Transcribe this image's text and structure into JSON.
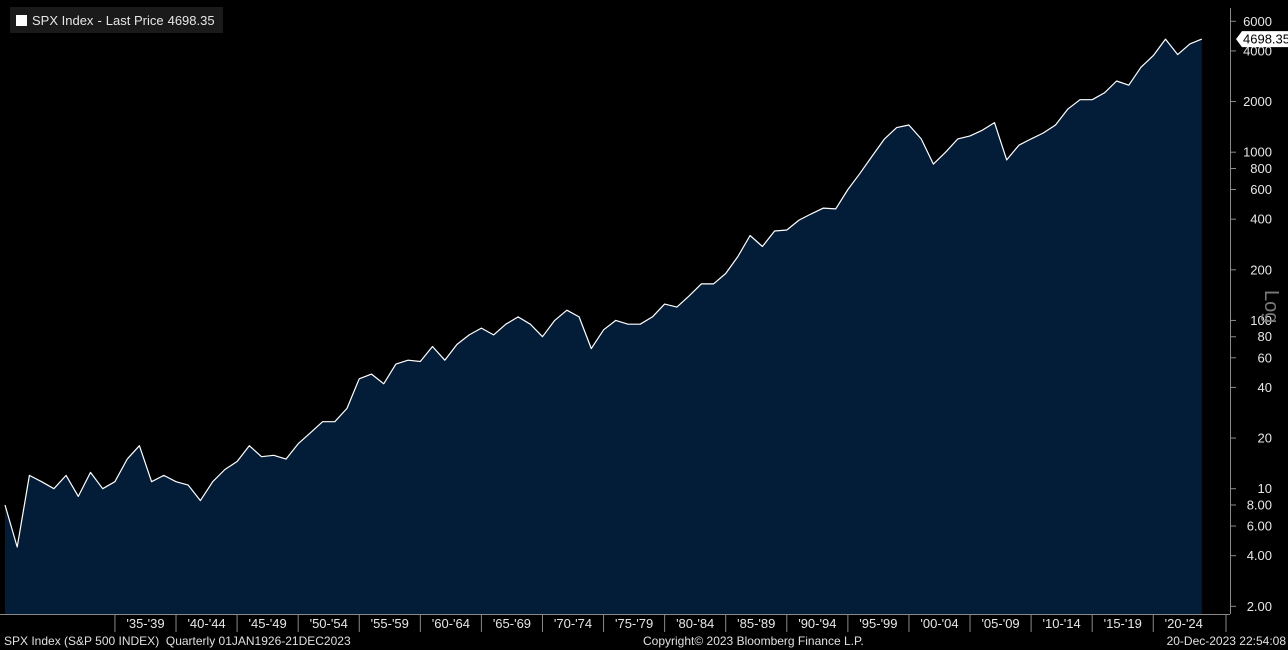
{
  "legend": {
    "ticker": "SPX Index",
    "separator": "-",
    "field": "Last Price",
    "value": "4698.35",
    "swatch_color": "#ffffff"
  },
  "last_price_tag": "4698.35",
  "scale_label": "Log",
  "footer": {
    "left": "SPX Index (S&P 500 INDEX)  Quarterly 01JAN1926-21DEC2023",
    "center": "Copyright© 2023 Bloomberg Finance L.P.",
    "right": "20-Dec-2023 22:54:08"
  },
  "colors": {
    "background": "#000000",
    "area_fill": "#031c37",
    "line": "#ffffff"
  },
  "chart_data": {
    "type": "area",
    "series": [
      {
        "x": [
          1926,
          1927,
          1928,
          1929,
          1930,
          1931,
          1932,
          1933,
          1934,
          1935,
          1936,
          1937,
          1938,
          1939,
          1940,
          1941,
          1942,
          1943,
          1944,
          1945,
          1946,
          1947,
          1948,
          1949,
          1950,
          1951,
          1952,
          1953,
          1954,
          1955,
          1956,
          1957,
          1958,
          1959,
          1960,
          1961,
          1962,
          1963,
          1964,
          1965,
          1966,
          1967,
          1968,
          1969,
          1970,
          1971,
          1972,
          1973,
          1974,
          1975,
          1976,
          1977,
          1978,
          1979,
          1980,
          1981,
          1982,
          1983,
          1984,
          1985,
          1986,
          1987,
          1988,
          1989,
          1990,
          1991,
          1992,
          1993,
          1994,
          1995,
          1996,
          1997,
          1998,
          1999,
          2000,
          2001,
          2002,
          2003,
          2004,
          2005,
          2006,
          2007,
          2008,
          2009,
          2010,
          2011,
          2012,
          2013,
          2014,
          2015,
          2016,
          2017,
          2018,
          2019,
          2020,
          2021,
          2022,
          2023,
          2023.97
        ],
        "values": [
          8.0,
          4.5,
          12.0,
          11.0,
          10.0,
          12.0,
          9.0,
          12.5,
          10.0,
          11.0,
          15.0,
          18.0,
          11.0,
          12.0,
          11.0,
          10.5,
          8.5,
          11.0,
          13.0,
          14.5,
          18.0,
          15.5,
          15.8,
          15.0,
          18.5,
          21.5,
          25.0,
          25.0,
          30.0,
          45.0,
          48.0,
          42.0,
          55.0,
          58.0,
          57.0,
          70.0,
          58.0,
          72.0,
          82.0,
          90.0,
          82.0,
          95.0,
          105.0,
          95.0,
          80.0,
          100.0,
          115.0,
          105.0,
          68.0,
          88.0,
          100.0,
          95.0,
          95.0,
          105.0,
          125.0,
          120.0,
          140.0,
          165.0,
          165.0,
          190.0,
          240.0,
          320.0,
          275.0,
          340.0,
          345.0,
          395.0,
          430.0,
          465.0,
          460.0,
          600.0,
          750.0,
          950.0,
          1200.0,
          1400.0,
          1450.0,
          1200.0,
          850.0,
          1000.0,
          1200.0,
          1250.0,
          1350.0,
          1500.0,
          900.0,
          1100.0,
          1200.0,
          1300.0,
          1450.0,
          1800.0,
          2050.0,
          2050.0,
          2250.0,
          2650.0,
          2500.0,
          3200.0,
          3750.0,
          4700.0,
          3800.0,
          4400.0,
          4698.35
        ]
      }
    ],
    "xlabel": "",
    "ylabel": "",
    "x_tick_labels": [
      "'35-'39",
      "'40-'44",
      "'45-'49",
      "'50-'54",
      "'55-'59",
      "'60-'64",
      "'65-'69",
      "'70-'74",
      "'75-'79",
      "'80-'84",
      "'85-'89",
      "'90-'94",
      "'95-'99",
      "'00-'04",
      "'05-'09",
      "'10-'14",
      "'15-'19",
      "'20-'24"
    ],
    "x_tick_periods": [
      [
        1935,
        1940
      ],
      [
        1940,
        1945
      ],
      [
        1945,
        1950
      ],
      [
        1950,
        1955
      ],
      [
        1955,
        1960
      ],
      [
        1960,
        1965
      ],
      [
        1965,
        1970
      ],
      [
        1970,
        1975
      ],
      [
        1975,
        1980
      ],
      [
        1980,
        1985
      ],
      [
        1985,
        1990
      ],
      [
        1990,
        1995
      ],
      [
        1995,
        2000
      ],
      [
        2000,
        2005
      ],
      [
        2005,
        2010
      ],
      [
        2010,
        2015
      ],
      [
        2015,
        2020
      ],
      [
        2020,
        2025
      ]
    ],
    "y_ticks": [
      2,
      4,
      6,
      8,
      10,
      20,
      40,
      60,
      80,
      100,
      200,
      400,
      600,
      800,
      1000,
      2000,
      4000,
      6000
    ],
    "y_tick_labels": [
      "2.00",
      "4.00",
      "6.00",
      "8.00",
      "10",
      "20",
      "40",
      "60",
      "80",
      "100",
      "200",
      "400",
      "600",
      "800",
      "1000",
      "2000",
      "4000",
      "6000"
    ],
    "xlim": [
      1926,
      2025.3
    ],
    "ylim": [
      1.8,
      7000
    ],
    "yscale": "log",
    "grid": false,
    "legend_position": "top-left"
  }
}
